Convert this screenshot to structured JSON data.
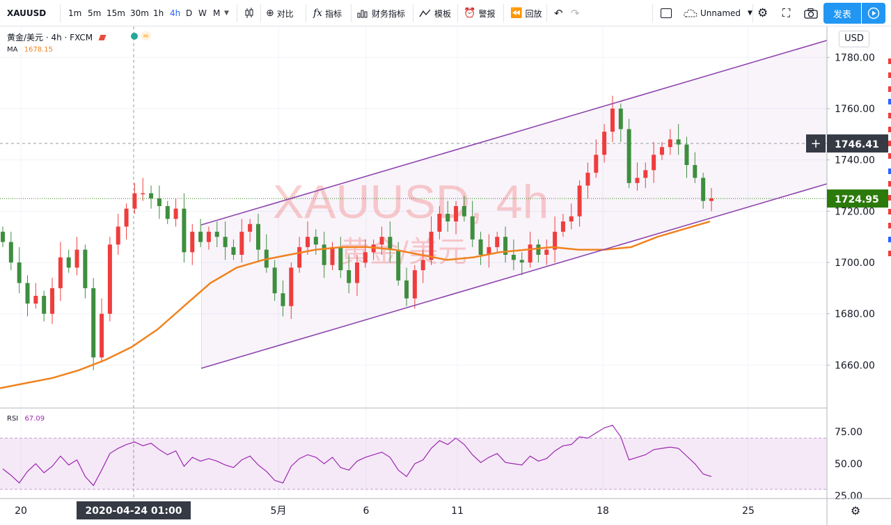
{
  "toolbar": {
    "symbol": "XAUUSD",
    "intervals": [
      "1m",
      "5m",
      "15m",
      "30m",
      "1h",
      "4h",
      "D",
      "W",
      "M"
    ],
    "active_interval": "4h",
    "compare": "对比",
    "indicators": "指标",
    "financials": "财务指标",
    "templates": "模板",
    "alert": "警报",
    "replay": "回放",
    "layout_name": "Unnamed",
    "publish": "发表"
  },
  "legend": {
    "title": "黄金/美元 · 4h · FXCM",
    "ma_label": "MA",
    "ma_value": "1678.15",
    "rsi_label": "RSI",
    "rsi_value": "67.09"
  },
  "watermark": {
    "main": "XAUUSD, 4h",
    "sub": "黄金/美元"
  },
  "price_axis": {
    "currency": "USD",
    "ticks": [
      "1780.00",
      "1760.00",
      "1740.00",
      "1720.00",
      "1700.00",
      "1680.00",
      "1660.00"
    ],
    "crosshair_price": "1746.41",
    "last_price": "1724.95"
  },
  "rsi_axis": {
    "ticks": [
      "75.00",
      "50.00",
      "25.00"
    ]
  },
  "time_axis": {
    "labels": [
      "20",
      "5月",
      "6",
      "11",
      "18",
      "25"
    ],
    "crosshair_label": "2020-04-24   01:00"
  },
  "colors": {
    "up": "#ef3d3d",
    "down": "#3e8e3e",
    "ma": "#f0821e",
    "channel": "#8e44ad",
    "rsi": "#9c27b0",
    "last_price_bg": "#2b7a0b",
    "crosshair_bg": "#363a45",
    "accent": "#2196f3"
  },
  "chart_data": {
    "type": "candlestick",
    "symbol": "XAUUSD",
    "interval": "4h",
    "ylim": [
      1645,
      1790
    ],
    "rsi_ylim": [
      22,
      85
    ],
    "ma_series": [
      1651,
      1653,
      1655,
      1658,
      1662,
      1667,
      1674,
      1683,
      1692,
      1698,
      1701,
      1703,
      1705,
      1706,
      1706,
      1705,
      1703,
      1701,
      1702,
      1704,
      1705,
      1706,
      1705,
      1705,
      1706,
      1710,
      1713,
      1716
    ],
    "channel": {
      "upper": [
        [
          1714,
          1786
        ]
      ],
      "lower": [
        [
          1659,
          1729
        ]
      ]
    },
    "candles_close": [
      1708,
      1700,
      1692,
      1684,
      1687,
      1680,
      1690,
      1702,
      1698,
      1705,
      1690,
      1663,
      1680,
      1707,
      1714,
      1721,
      1727,
      1727,
      1725,
      1722,
      1717,
      1721,
      1704,
      1712,
      1708,
      1712,
      1710,
      1706,
      1703,
      1712,
      1715,
      1705,
      1698,
      1688,
      1683,
      1698,
      1706,
      1710,
      1707,
      1699,
      1706,
      1697,
      1692,
      1700,
      1704,
      1707,
      1710,
      1705,
      1693,
      1686,
      1697,
      1701,
      1712,
      1719,
      1716,
      1722,
      1718,
      1709,
      1703,
      1706,
      1710,
      1703,
      1701,
      1700,
      1707,
      1703,
      1705,
      1712,
      1716,
      1718,
      1730,
      1735,
      1742,
      1751,
      1760,
      1752,
      1731,
      1733,
      1736,
      1742,
      1745,
      1748,
      1746,
      1738,
      1733,
      1724,
      1725
    ],
    "rsi_series": [
      46,
      41,
      35,
      44,
      50,
      43,
      48,
      56,
      49,
      53,
      40,
      33,
      45,
      58,
      62,
      65,
      67,
      64,
      66,
      61,
      57,
      60,
      48,
      55,
      52,
      54,
      52,
      49,
      47,
      53,
      56,
      49,
      44,
      37,
      35,
      48,
      54,
      57,
      55,
      50,
      55,
      47,
      45,
      52,
      55,
      57,
      59,
      55,
      45,
      40,
      50,
      53,
      62,
      68,
      65,
      70,
      65,
      57,
      51,
      55,
      58,
      51,
      50,
      49,
      56,
      52,
      54,
      60,
      64,
      65,
      71,
      70,
      74,
      78,
      80,
      71,
      53,
      55,
      57,
      61,
      62,
      63,
      62,
      56,
      50,
      42,
      40
    ]
  }
}
